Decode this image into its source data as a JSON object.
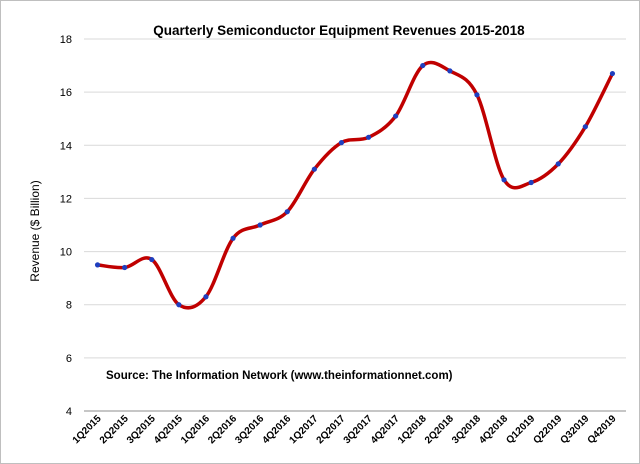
{
  "chart_data": {
    "type": "line",
    "title": "Quarterly Semiconductor Equipment Revenues 2015-2018",
    "xlabel": "",
    "ylabel": "Revenue ($ Billion)",
    "ylim": [
      4,
      18
    ],
    "yticks": [
      4,
      6,
      8,
      10,
      12,
      14,
      16,
      18
    ],
    "grid": true,
    "legend": "none",
    "annotation": "Source: The Information Network (www.theinformationnet.com)",
    "categories": [
      "1Q2015",
      "2Q2015",
      "3Q2015",
      "4Q2015",
      "1Q2016",
      "2Q2016",
      "3Q2016",
      "4Q2016",
      "1Q2017",
      "2Q2017",
      "3Q2017",
      "4Q2017",
      "1Q2018",
      "2Q2018",
      "3Q2018",
      "4Q2018",
      "Q12019",
      "Q22019",
      "Q32019",
      "Q42019"
    ],
    "series": [
      {
        "name": "",
        "color": "#c00000",
        "marker_color": "#1f3fbf",
        "values": [
          9.5,
          9.4,
          9.7,
          8.0,
          8.3,
          10.5,
          11.0,
          11.5,
          13.1,
          14.1,
          14.3,
          15.1,
          17.0,
          16.8,
          15.9,
          12.7,
          12.6,
          13.3,
          14.7,
          16.7
        ]
      }
    ]
  }
}
